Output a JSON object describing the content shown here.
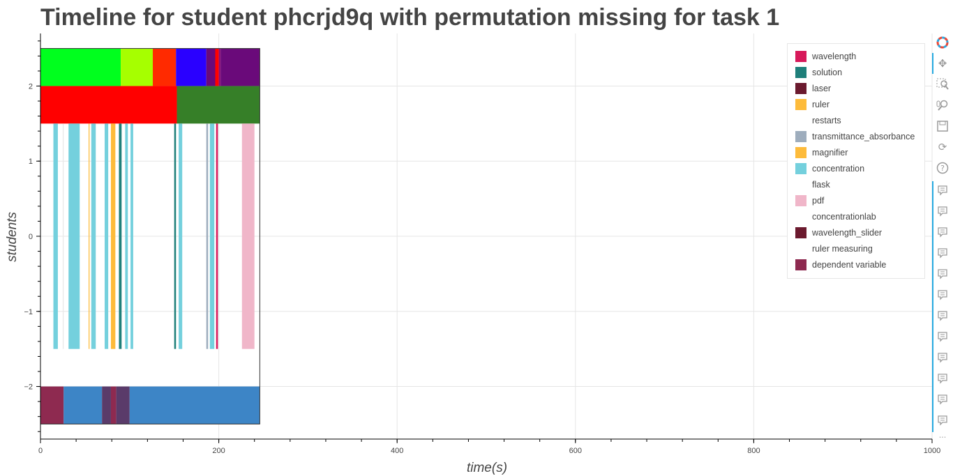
{
  "chart_data": {
    "type": "timeline",
    "title": "Timeline for student phcrjd9q with permutation missing for task 1",
    "xlabel": "time(s)",
    "ylabel": "students",
    "xlim": [
      0,
      1000
    ],
    "ylim": [
      -2.7,
      2.7
    ],
    "x_ticks": [
      0,
      200,
      400,
      600,
      800,
      1000
    ],
    "y_ticks": [
      2,
      1,
      0,
      -1,
      -2
    ],
    "y_tick_labels": [
      "2",
      "1",
      "0",
      "−1",
      "−2"
    ],
    "grid": true,
    "legend_position": "top-right",
    "legend": [
      {
        "label": "wavelength",
        "color": "#d7195a"
      },
      {
        "label": "solution",
        "color": "#1f7f7a"
      },
      {
        "label": "laser",
        "color": "#6b1a2e"
      },
      {
        "label": "ruler",
        "color": "#fdbb3b"
      },
      {
        "label": "restarts",
        "color": null
      },
      {
        "label": "transmittance_absorbance",
        "color": "#9eadbd"
      },
      {
        "label": "magnifier",
        "color": "#fdbb3b"
      },
      {
        "label": "concentration",
        "color": "#74d0dd"
      },
      {
        "label": "flask",
        "color": null
      },
      {
        "label": "pdf",
        "color": "#f0b6c9"
      },
      {
        "label": "concentrationlab",
        "color": null
      },
      {
        "label": "wavelength_slider",
        "color": "#6b1a2e"
      },
      {
        "label": "ruler measuring",
        "color": null
      },
      {
        "label": "dependent variable",
        "color": "#8e2a50"
      }
    ],
    "bars": [
      {
        "row": "top",
        "segments": [
          {
            "x0": 0,
            "x1": 90,
            "color": "#00ff1e"
          },
          {
            "x0": 90,
            "x1": 126,
            "color": "#a6ff00"
          },
          {
            "x0": 126,
            "x1": 152,
            "color": "#ff2a00"
          },
          {
            "x0": 152,
            "x1": 186,
            "color": "#2a00ff"
          },
          {
            "x0": 186,
            "x1": 196,
            "color": "#6a0a7a"
          },
          {
            "x0": 196,
            "x1": 200,
            "color": "#ff0000"
          },
          {
            "x0": 200,
            "x1": 202,
            "color": "#8a0f7a"
          },
          {
            "x0": 202,
            "x1": 246,
            "color": "#6a0a7a"
          }
        ]
      },
      {
        "row": "second",
        "segments": [
          {
            "x0": 0,
            "x1": 153,
            "color": "#ff0000"
          },
          {
            "x0": 153,
            "x1": 246,
            "color": "#367f28"
          }
        ]
      },
      {
        "row": "bottom",
        "segments": [
          {
            "x0": 0,
            "x1": 26,
            "color": "#8e2a50"
          },
          {
            "x0": 26,
            "x1": 69,
            "color": "#3d85c6"
          },
          {
            "x0": 69,
            "x1": 79,
            "color": "#5a3b6a"
          },
          {
            "x0": 79,
            "x1": 85,
            "color": "#8e2a50"
          },
          {
            "x0": 85,
            "x1": 100,
            "color": "#5a3b6a"
          },
          {
            "x0": 100,
            "x1": 246,
            "color": "#3d85c6"
          }
        ]
      }
    ],
    "events": [
      {
        "x0": 14.5,
        "x1": 19.5,
        "color": "#74d0dd"
      },
      {
        "x0": 25,
        "x1": 26,
        "color": "#e8e8e8"
      },
      {
        "x0": 31.5,
        "x1": 44,
        "color": "#74d0dd"
      },
      {
        "x0": 54,
        "x1": 55,
        "color": "#fdbb3b"
      },
      {
        "x0": 57,
        "x1": 62,
        "color": "#74d0dd"
      },
      {
        "x0": 72,
        "x1": 76,
        "color": "#74d0dd"
      },
      {
        "x0": 79,
        "x1": 84,
        "color": "#fdbb3b"
      },
      {
        "x0": 88,
        "x1": 91,
        "color": "#1f7f7a"
      },
      {
        "x0": 95,
        "x1": 98,
        "color": "#74d0dd"
      },
      {
        "x0": 101,
        "x1": 104,
        "color": "#74d0dd"
      },
      {
        "x0": 150,
        "x1": 152,
        "color": "#1f7f7a"
      },
      {
        "x0": 155,
        "x1": 159,
        "color": "#74d0dd"
      },
      {
        "x0": 186,
        "x1": 188,
        "color": "#9eadbd"
      },
      {
        "x0": 190,
        "x1": 195,
        "color": "#74d0dd"
      },
      {
        "x0": 197,
        "x1": 199,
        "color": "#d7195a"
      },
      {
        "x0": 226,
        "x1": 240,
        "color": "#f0b6c9"
      }
    ]
  }
}
